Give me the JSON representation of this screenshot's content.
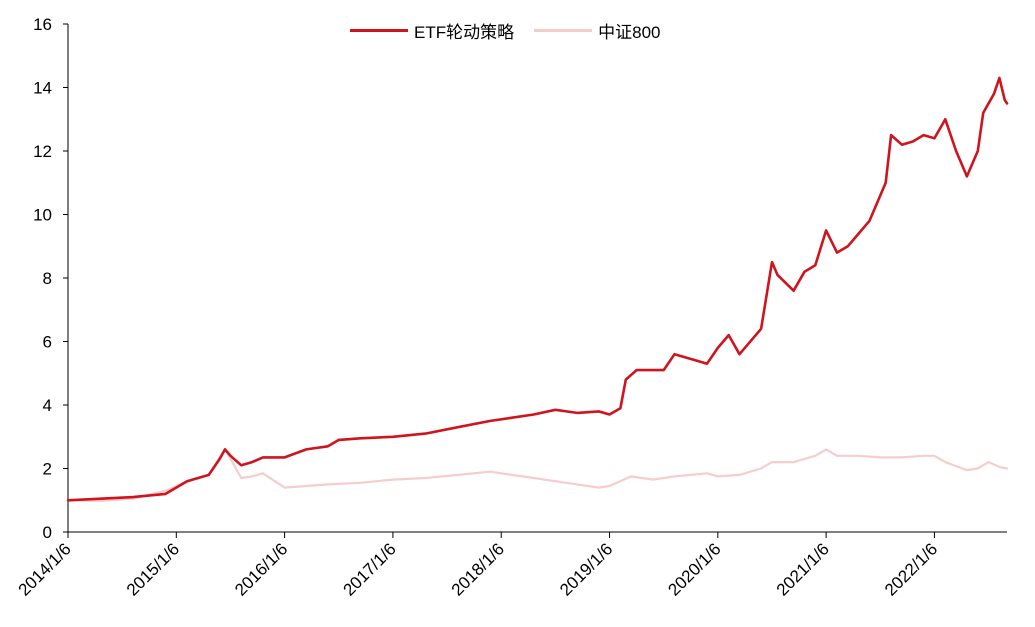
{
  "chart_data": {
    "type": "line",
    "title": "",
    "xlabel": "",
    "ylabel": "",
    "ylim": [
      0,
      16
    ],
    "yticks": [
      "0",
      "2",
      "4",
      "6",
      "8",
      "10",
      "12",
      "14",
      "16"
    ],
    "xticks": [
      "2014/1/6",
      "2015/1/6",
      "2016/1/6",
      "2017/1/6",
      "2018/1/6",
      "2019/1/6",
      "2020/1/6",
      "2021/1/6",
      "2022/1/6"
    ],
    "x_range_years": [
      2014.0,
      2022.67
    ],
    "grid": false,
    "legend_position": "top-center",
    "series": [
      {
        "name": "ETF轮动策略",
        "color": "#D0141E",
        "points": [
          [
            2014.0,
            1.0
          ],
          [
            2014.3,
            1.05
          ],
          [
            2014.6,
            1.1
          ],
          [
            2014.9,
            1.2
          ],
          [
            2015.1,
            1.6
          ],
          [
            2015.3,
            1.8
          ],
          [
            2015.4,
            2.3
          ],
          [
            2015.45,
            2.6
          ],
          [
            2015.5,
            2.4
          ],
          [
            2015.6,
            2.1
          ],
          [
            2015.7,
            2.2
          ],
          [
            2015.8,
            2.35
          ],
          [
            2016.0,
            2.35
          ],
          [
            2016.2,
            2.6
          ],
          [
            2016.4,
            2.7
          ],
          [
            2016.5,
            2.9
          ],
          [
            2016.7,
            2.95
          ],
          [
            2017.0,
            3.0
          ],
          [
            2017.3,
            3.1
          ],
          [
            2017.6,
            3.3
          ],
          [
            2017.9,
            3.5
          ],
          [
            2018.1,
            3.6
          ],
          [
            2018.3,
            3.7
          ],
          [
            2018.5,
            3.85
          ],
          [
            2018.7,
            3.75
          ],
          [
            2018.9,
            3.8
          ],
          [
            2019.0,
            3.7
          ],
          [
            2019.1,
            3.9
          ],
          [
            2019.15,
            4.8
          ],
          [
            2019.25,
            5.1
          ],
          [
            2019.5,
            5.1
          ],
          [
            2019.6,
            5.6
          ],
          [
            2019.8,
            5.4
          ],
          [
            2019.9,
            5.3
          ],
          [
            2020.0,
            5.8
          ],
          [
            2020.1,
            6.2
          ],
          [
            2020.2,
            5.6
          ],
          [
            2020.4,
            6.4
          ],
          [
            2020.5,
            8.5
          ],
          [
            2020.55,
            8.1
          ],
          [
            2020.7,
            7.6
          ],
          [
            2020.8,
            8.2
          ],
          [
            2020.9,
            8.4
          ],
          [
            2021.0,
            9.5
          ],
          [
            2021.1,
            8.8
          ],
          [
            2021.2,
            9.0
          ],
          [
            2021.3,
            9.4
          ],
          [
            2021.4,
            9.8
          ],
          [
            2021.55,
            11.0
          ],
          [
            2021.6,
            12.5
          ],
          [
            2021.7,
            12.2
          ],
          [
            2021.8,
            12.3
          ],
          [
            2021.9,
            12.5
          ],
          [
            2022.0,
            12.4
          ],
          [
            2022.1,
            13.0
          ],
          [
            2022.2,
            12.0
          ],
          [
            2022.3,
            11.2
          ],
          [
            2022.4,
            12.0
          ],
          [
            2022.45,
            13.2
          ],
          [
            2022.55,
            13.8
          ],
          [
            2022.6,
            14.3
          ],
          [
            2022.65,
            13.6
          ],
          [
            2022.67,
            13.5
          ]
        ]
      },
      {
        "name": "中证800",
        "color": "#F6CDCD",
        "points": [
          [
            2014.0,
            1.0
          ],
          [
            2014.3,
            0.98
          ],
          [
            2014.6,
            1.05
          ],
          [
            2014.9,
            1.3
          ],
          [
            2015.1,
            1.6
          ],
          [
            2015.3,
            1.8
          ],
          [
            2015.45,
            2.6
          ],
          [
            2015.5,
            2.3
          ],
          [
            2015.6,
            1.7
          ],
          [
            2015.7,
            1.75
          ],
          [
            2015.8,
            1.85
          ],
          [
            2016.0,
            1.4
          ],
          [
            2016.2,
            1.45
          ],
          [
            2016.4,
            1.5
          ],
          [
            2016.7,
            1.55
          ],
          [
            2017.0,
            1.65
          ],
          [
            2017.3,
            1.7
          ],
          [
            2017.6,
            1.8
          ],
          [
            2017.9,
            1.9
          ],
          [
            2018.1,
            1.8
          ],
          [
            2018.3,
            1.7
          ],
          [
            2018.6,
            1.55
          ],
          [
            2018.9,
            1.4
          ],
          [
            2019.0,
            1.45
          ],
          [
            2019.2,
            1.75
          ],
          [
            2019.4,
            1.65
          ],
          [
            2019.6,
            1.75
          ],
          [
            2019.9,
            1.85
          ],
          [
            2020.0,
            1.75
          ],
          [
            2020.2,
            1.8
          ],
          [
            2020.4,
            2.0
          ],
          [
            2020.5,
            2.2
          ],
          [
            2020.7,
            2.2
          ],
          [
            2020.9,
            2.4
          ],
          [
            2021.0,
            2.6
          ],
          [
            2021.1,
            2.4
          ],
          [
            2021.3,
            2.4
          ],
          [
            2021.5,
            2.35
          ],
          [
            2021.7,
            2.35
          ],
          [
            2021.9,
            2.4
          ],
          [
            2022.0,
            2.4
          ],
          [
            2022.1,
            2.2
          ],
          [
            2022.3,
            1.95
          ],
          [
            2022.4,
            2.0
          ],
          [
            2022.5,
            2.2
          ],
          [
            2022.6,
            2.05
          ],
          [
            2022.67,
            2.0
          ]
        ]
      }
    ]
  }
}
